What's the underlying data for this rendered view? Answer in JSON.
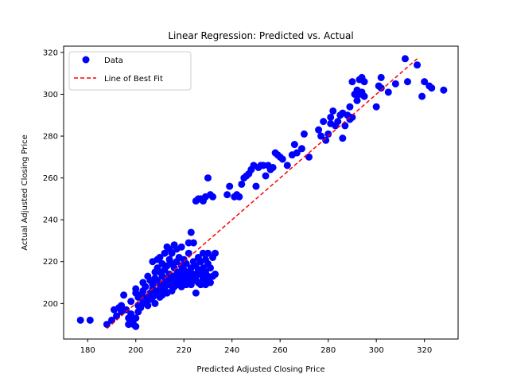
{
  "chart_data": {
    "type": "scatter",
    "title": "Linear Regression: Predicted vs. Actual",
    "xlabel": "Predicted Adjusted Closing Price",
    "ylabel": "Actual Adjusted Closing Price",
    "xlim": [
      170,
      334
    ],
    "ylim": [
      183,
      323
    ],
    "xticks": [
      180,
      200,
      220,
      240,
      260,
      280,
      300,
      320
    ],
    "yticks": [
      200,
      220,
      240,
      260,
      280,
      300,
      320
    ],
    "grid": false,
    "legend_position": "top-left",
    "series": [
      {
        "name": "Data",
        "kind": "scatter",
        "color": "#0000ff",
        "points": [
          [
            177,
            192
          ],
          [
            181,
            192
          ],
          [
            188,
            190
          ],
          [
            190,
            192
          ],
          [
            191,
            197
          ],
          [
            192,
            194
          ],
          [
            193,
            198
          ],
          [
            194,
            196
          ],
          [
            194,
            199
          ],
          [
            195,
            204
          ],
          [
            196,
            197
          ],
          [
            197,
            193
          ],
          [
            197,
            190
          ],
          [
            198,
            195
          ],
          [
            198,
            201
          ],
          [
            199,
            192
          ],
          [
            199,
            190
          ],
          [
            200,
            189
          ],
          [
            200,
            193
          ],
          [
            200,
            207
          ],
          [
            200,
            205
          ],
          [
            201,
            199
          ],
          [
            201,
            196
          ],
          [
            201,
            203
          ],
          [
            202,
            204
          ],
          [
            202,
            198
          ],
          [
            203,
            206
          ],
          [
            203,
            201
          ],
          [
            203,
            210
          ],
          [
            204,
            203
          ],
          [
            204,
            200
          ],
          [
            204,
            208
          ],
          [
            205,
            202
          ],
          [
            205,
            213
          ],
          [
            205,
            199
          ],
          [
            206,
            205
          ],
          [
            206,
            211
          ],
          [
            206,
            202
          ],
          [
            207,
            220
          ],
          [
            207,
            207
          ],
          [
            207,
            209
          ],
          [
            207,
            203
          ],
          [
            208,
            204
          ],
          [
            208,
            212
          ],
          [
            208,
            215
          ],
          [
            208,
            200
          ],
          [
            209,
            206
          ],
          [
            209,
            217
          ],
          [
            209,
            221
          ],
          [
            209,
            211
          ],
          [
            210,
            203
          ],
          [
            210,
            215
          ],
          [
            210,
            209
          ],
          [
            210,
            222
          ],
          [
            211,
            207
          ],
          [
            211,
            213
          ],
          [
            211,
            219
          ],
          [
            211,
            204
          ],
          [
            212,
            224
          ],
          [
            212,
            210
          ],
          [
            212,
            216
          ],
          [
            212,
            207
          ],
          [
            213,
            227
          ],
          [
            213,
            218
          ],
          [
            213,
            212
          ],
          [
            213,
            205
          ],
          [
            214,
            221
          ],
          [
            214,
            214
          ],
          [
            214,
            209
          ],
          [
            214,
            226
          ],
          [
            215,
            211
          ],
          [
            215,
            219
          ],
          [
            215,
            206
          ],
          [
            215,
            224
          ],
          [
            216,
            213
          ],
          [
            216,
            208
          ],
          [
            216,
            228
          ],
          [
            216,
            217
          ],
          [
            217,
            220
          ],
          [
            217,
            210
          ],
          [
            217,
            214
          ],
          [
            217,
            226
          ],
          [
            218,
            212
          ],
          [
            218,
            209
          ],
          [
            218,
            222
          ],
          [
            218,
            215
          ],
          [
            219,
            211
          ],
          [
            219,
            218
          ],
          [
            219,
            208
          ],
          [
            219,
            227
          ],
          [
            220,
            213
          ],
          [
            220,
            221
          ],
          [
            220,
            210
          ],
          [
            220,
            216
          ],
          [
            221,
            212
          ],
          [
            221,
            219
          ],
          [
            221,
            209
          ],
          [
            222,
            215
          ],
          [
            222,
            211
          ],
          [
            222,
            224
          ],
          [
            222,
            229
          ],
          [
            223,
            213
          ],
          [
            223,
            217
          ],
          [
            223,
            209
          ],
          [
            223,
            234
          ],
          [
            224,
            212
          ],
          [
            224,
            220
          ],
          [
            224,
            214
          ],
          [
            224,
            229
          ],
          [
            225,
            211
          ],
          [
            225,
            218
          ],
          [
            225,
            205
          ],
          [
            225,
            213
          ],
          [
            226,
            216
          ],
          [
            226,
            210
          ],
          [
            226,
            222
          ],
          [
            227,
            214
          ],
          [
            227,
            209
          ],
          [
            227,
            220
          ],
          [
            228,
            212
          ],
          [
            228,
            217
          ],
          [
            228,
            224
          ],
          [
            229,
            211
          ],
          [
            229,
            215
          ],
          [
            229,
            221
          ],
          [
            229,
            209
          ],
          [
            230,
            213
          ],
          [
            230,
            224
          ],
          [
            230,
            219
          ],
          [
            231,
            210
          ],
          [
            231,
            217
          ],
          [
            232,
            222
          ],
          [
            232,
            213
          ],
          [
            233,
            224
          ],
          [
            233,
            214
          ],
          [
            225,
            249
          ],
          [
            226,
            250
          ],
          [
            227,
            250
          ],
          [
            228,
            249
          ],
          [
            229,
            251
          ],
          [
            230,
            260
          ],
          [
            231,
            252
          ],
          [
            232,
            251
          ],
          [
            238,
            252
          ],
          [
            239,
            256
          ],
          [
            241,
            251
          ],
          [
            242,
            252
          ],
          [
            243,
            251
          ],
          [
            244,
            257
          ],
          [
            245,
            260
          ],
          [
            246,
            261
          ],
          [
            247,
            262
          ],
          [
            248,
            264
          ],
          [
            249,
            266
          ],
          [
            250,
            256
          ],
          [
            251,
            265
          ],
          [
            252,
            266
          ],
          [
            253,
            266
          ],
          [
            254,
            261
          ],
          [
            255,
            266
          ],
          [
            256,
            264
          ],
          [
            257,
            265
          ],
          [
            258,
            272
          ],
          [
            259,
            271
          ],
          [
            260,
            270
          ],
          [
            261,
            269
          ],
          [
            263,
            266
          ],
          [
            265,
            271
          ],
          [
            266,
            276
          ],
          [
            267,
            272
          ],
          [
            269,
            274
          ],
          [
            270,
            281
          ],
          [
            272,
            270
          ],
          [
            276,
            283
          ],
          [
            277,
            280
          ],
          [
            278,
            287
          ],
          [
            279,
            278
          ],
          [
            280,
            281
          ],
          [
            281,
            289
          ],
          [
            282,
            292
          ],
          [
            283,
            285
          ],
          [
            284,
            287
          ],
          [
            285,
            290
          ],
          [
            286,
            279
          ],
          [
            287,
            285
          ],
          [
            288,
            290
          ],
          [
            289,
            288
          ],
          [
            290,
            289
          ],
          [
            290,
            306
          ],
          [
            291,
            300
          ],
          [
            292,
            302
          ],
          [
            292,
            297
          ],
          [
            293,
            300
          ],
          [
            293,
            307
          ],
          [
            294,
            308
          ],
          [
            294,
            301
          ],
          [
            295,
            306
          ],
          [
            295,
            299
          ],
          [
            301,
            304
          ],
          [
            300,
            294
          ],
          [
            302,
            308
          ],
          [
            305,
            301
          ],
          [
            308,
            305
          ],
          [
            312,
            317
          ],
          [
            313,
            306
          ],
          [
            317,
            314
          ],
          [
            319,
            299
          ],
          [
            320,
            306
          ],
          [
            322,
            304
          ],
          [
            323,
            303
          ],
          [
            328,
            302
          ],
          [
            302,
            303
          ],
          [
            289,
            294
          ],
          [
            286,
            291
          ],
          [
            281,
            286
          ]
        ]
      },
      {
        "name": "Line of Best Fit",
        "kind": "line",
        "style": "dashed",
        "color": "#ff0000",
        "points": [
          [
            188,
            188
          ],
          [
            317,
            317
          ]
        ]
      }
    ]
  }
}
